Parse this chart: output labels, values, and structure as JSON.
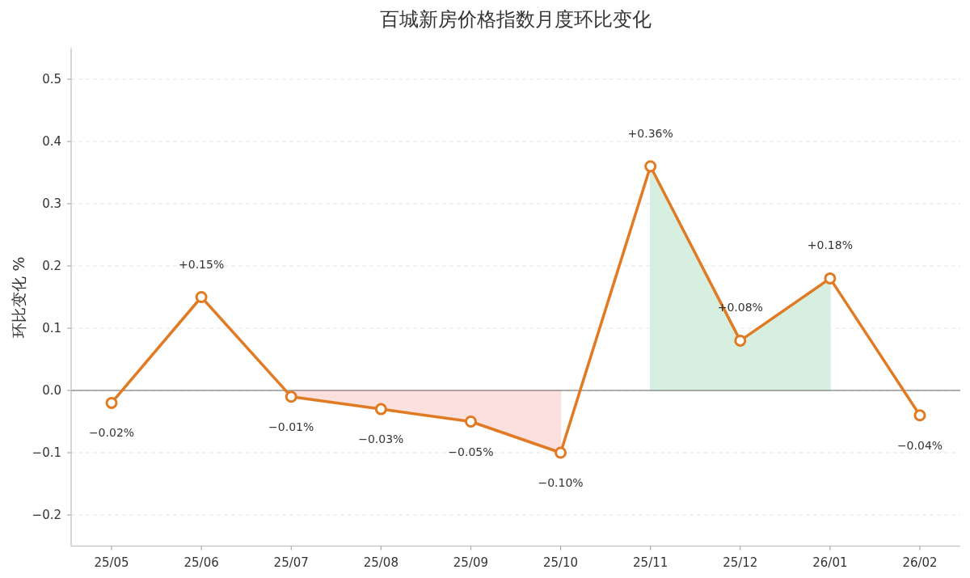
{
  "chart_data": {
    "type": "line",
    "title": "百城新房价格指数月度环比变化",
    "ylabel": "环比变化 %",
    "categories": [
      "25/05",
      "25/06",
      "25/07",
      "25/08",
      "25/09",
      "25/10",
      "25/11",
      "25/12",
      "26/01",
      "26/02"
    ],
    "series": [
      {
        "type": "area",
        "color": "#d6efe0",
        "values": [
          null,
          null,
          null,
          null,
          null,
          null,
          0.36,
          0.08,
          0.18,
          null
        ]
      },
      {
        "type": "area",
        "color": "#fbe0dd",
        "values": [
          null,
          null,
          -0.01,
          -0.03,
          -0.05,
          -0.1,
          null,
          null,
          null,
          null
        ]
      },
      {
        "color": "#e07b24",
        "marker": "circle",
        "values": [
          -0.02,
          0.15,
          -0.01,
          -0.03,
          -0.05,
          -0.1,
          0.36,
          0.08,
          0.18,
          -0.04
        ],
        "value_labels": [
          "−0.02%",
          "+0.15%",
          "−0.01%",
          "−0.03%",
          "−0.05%",
          "−0.10%",
          "+0.36%",
          "+0.08%",
          "+0.18%",
          "−0.04%"
        ]
      }
    ],
    "ylim": [
      -0.25,
      0.55
    ],
    "yticks": [
      {
        "value": -0.2,
        "label": "−0.2"
      },
      {
        "value": -0.1,
        "label": "−0.1"
      },
      {
        "value": 0,
        "label": "0.0"
      },
      {
        "value": 0.1,
        "label": "0.1"
      },
      {
        "value": 0.2,
        "label": "0.2"
      },
      {
        "value": 0.3,
        "label": "0.3"
      },
      {
        "value": 0.4,
        "label": "0.4"
      },
      {
        "value": 0.5,
        "label": "0.5"
      }
    ],
    "grid": "y",
    "line_style": "solid",
    "ref_lines": [
      {
        "axis": "y",
        "value": 0,
        "color": "#666666"
      }
    ]
  }
}
